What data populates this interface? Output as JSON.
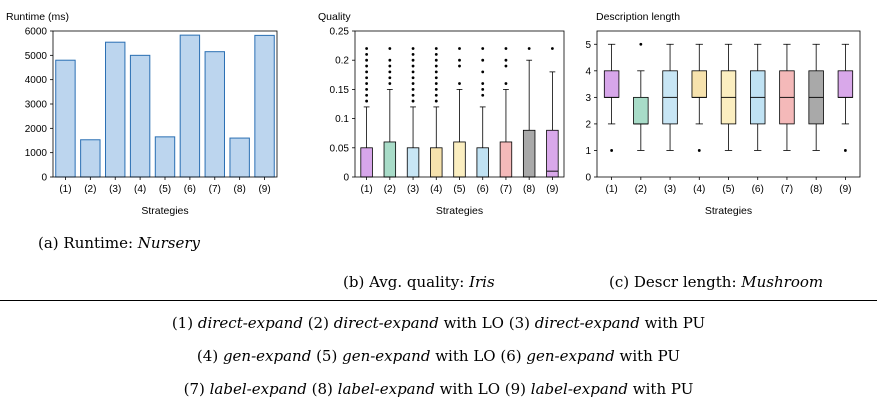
{
  "chart_data": [
    {
      "type": "bar",
      "ylabel": "Runtime (ms)",
      "xlabel": "Strategies",
      "categories": [
        "(1)",
        "(2)",
        "(3)",
        "(4)",
        "(5)",
        "(6)",
        "(7)",
        "(8)",
        "(9)"
      ],
      "values": [
        4800,
        1530,
        5540,
        5000,
        1650,
        5830,
        5150,
        1600,
        5820
      ],
      "ylim": [
        0,
        6000
      ],
      "yticks": [
        "0",
        "1000",
        "2000",
        "3000",
        "4000",
        "5000",
        "6000"
      ],
      "yticks_values": [
        0,
        1000,
        2000,
        3000,
        4000,
        5000,
        6000
      ],
      "bar_color": "#bcd5ee",
      "bar_edge": "#2a6fb3"
    },
    {
      "type": "box",
      "ylabel": "Quality",
      "xlabel": "Strategies",
      "categories": [
        "(1)",
        "(2)",
        "(3)",
        "(4)",
        "(5)",
        "(6)",
        "(7)",
        "(8)",
        "(9)"
      ],
      "ylim": [
        0,
        0.25
      ],
      "yticks": [
        "0",
        "0.05",
        "0.1",
        "0.15",
        "0.2",
        "0.25"
      ],
      "yticks_values": [
        0,
        0.05,
        0.1,
        0.15,
        0.2,
        0.25
      ],
      "boxes": [
        {
          "whislo": 0,
          "q1": 0,
          "med": 0,
          "q3": 0.05,
          "whishi": 0.12,
          "fliers": [
            0.13,
            0.14,
            0.15,
            0.16,
            0.17,
            0.18,
            0.19,
            0.2,
            0.21,
            0.22
          ],
          "color": "#d7a6ea"
        },
        {
          "whislo": 0,
          "q1": 0,
          "med": 0,
          "q3": 0.06,
          "whishi": 0.15,
          "fliers": [
            0.16,
            0.17,
            0.18,
            0.19,
            0.2,
            0.22
          ],
          "color": "#a8dcc8"
        },
        {
          "whislo": 0,
          "q1": 0,
          "med": 0,
          "q3": 0.05,
          "whishi": 0.12,
          "fliers": [
            0.13,
            0.14,
            0.15,
            0.16,
            0.17,
            0.18,
            0.19,
            0.2,
            0.21,
            0.22
          ],
          "color": "#c8e6f5"
        },
        {
          "whislo": 0,
          "q1": 0,
          "med": 0,
          "q3": 0.05,
          "whishi": 0.12,
          "fliers": [
            0.13,
            0.14,
            0.15,
            0.16,
            0.17,
            0.18,
            0.19,
            0.2,
            0.21,
            0.22
          ],
          "color": "#f6e2ad"
        },
        {
          "whislo": 0,
          "q1": 0,
          "med": 0,
          "q3": 0.06,
          "whishi": 0.15,
          "fliers": [
            0.16,
            0.19,
            0.2,
            0.22
          ],
          "color": "#fbeec0"
        },
        {
          "whislo": 0,
          "q1": 0,
          "med": 0,
          "q3": 0.05,
          "whishi": 0.12,
          "fliers": [
            0.14,
            0.15,
            0.16,
            0.18,
            0.2,
            0.22
          ],
          "color": "#c0e2f3"
        },
        {
          "whislo": 0,
          "q1": 0,
          "med": 0,
          "q3": 0.06,
          "whishi": 0.15,
          "fliers": [
            0.16,
            0.19,
            0.2,
            0.22
          ],
          "color": "#f4b9b9"
        },
        {
          "whislo": 0,
          "q1": 0,
          "med": 0,
          "q3": 0.08,
          "whishi": 0.2,
          "fliers": [
            0.22
          ],
          "color": "#a9a9a9"
        },
        {
          "whislo": 0,
          "q1": 0,
          "med": 0.01,
          "q3": 0.08,
          "whishi": 0.18,
          "fliers": [
            0.22
          ],
          "color": "#d9a8ea"
        }
      ]
    },
    {
      "type": "box",
      "ylabel": "Description length",
      "xlabel": "Strategies",
      "categories": [
        "(1)",
        "(2)",
        "(3)",
        "(4)",
        "(5)",
        "(6)",
        "(7)",
        "(8)",
        "(9)"
      ],
      "ylim": [
        0,
        5.5
      ],
      "yticks": [
        "0",
        "1",
        "2",
        "3",
        "4",
        "5"
      ],
      "yticks_values": [
        0,
        1,
        2,
        3,
        4,
        5
      ],
      "boxes": [
        {
          "whislo": 2,
          "q1": 3,
          "med": 3,
          "q3": 4,
          "whishi": 5,
          "fliers": [
            1
          ],
          "color": "#d7a6ea"
        },
        {
          "whislo": 1,
          "q1": 2,
          "med": 2,
          "q3": 3,
          "whishi": 4,
          "fliers": [
            5
          ],
          "color": "#a8dcc8"
        },
        {
          "whislo": 1,
          "q1": 2,
          "med": 3,
          "q3": 4,
          "whishi": 5,
          "fliers": [],
          "color": "#c8e6f5"
        },
        {
          "whislo": 2,
          "q1": 3,
          "med": 3,
          "q3": 4,
          "whishi": 5,
          "fliers": [
            1
          ],
          "color": "#f6e2ad"
        },
        {
          "whislo": 1,
          "q1": 2,
          "med": 3,
          "q3": 4,
          "whishi": 5,
          "fliers": [],
          "color": "#fbeec0"
        },
        {
          "whislo": 1,
          "q1": 2,
          "med": 3,
          "q3": 4,
          "whishi": 5,
          "fliers": [],
          "color": "#c0e2f3"
        },
        {
          "whislo": 1,
          "q1": 2,
          "med": 3,
          "q3": 4,
          "whishi": 5,
          "fliers": [],
          "color": "#f4b9b9"
        },
        {
          "whislo": 1,
          "q1": 2,
          "med": 3,
          "q3": 4,
          "whishi": 5,
          "fliers": [],
          "color": "#a9a9a9"
        },
        {
          "whislo": 2,
          "q1": 3,
          "med": 3,
          "q3": 4,
          "whishi": 5,
          "fliers": [
            1
          ],
          "color": "#d9a8ea"
        }
      ]
    }
  ],
  "captions": {
    "a": {
      "label": "(a) Runtime:",
      "dataset": "Nursery"
    },
    "b": {
      "label": "(b) Avg. quality:",
      "dataset": "Iris"
    },
    "c": {
      "label": "(c) Descr length:",
      "dataset": "Mushroom"
    }
  },
  "legend_lines": [
    [
      {
        "t": "(1) ",
        "i": false
      },
      {
        "t": "direct-expand",
        "i": true
      },
      {
        "t": " (2) ",
        "i": false
      },
      {
        "t": "direct-expand",
        "i": true
      },
      {
        "t": " with LO (3) ",
        "i": false
      },
      {
        "t": "direct-expand",
        "i": true
      },
      {
        "t": " with PU",
        "i": false
      }
    ],
    [
      {
        "t": "(4) ",
        "i": false
      },
      {
        "t": "gen-expand",
        "i": true
      },
      {
        "t": " (5) ",
        "i": false
      },
      {
        "t": "gen-expand",
        "i": true
      },
      {
        "t": " with LO (6) ",
        "i": false
      },
      {
        "t": "gen-expand",
        "i": true
      },
      {
        "t": " with PU",
        "i": false
      }
    ],
    [
      {
        "t": "(7) ",
        "i": false
      },
      {
        "t": "label-expand",
        "i": true
      },
      {
        "t": " (8) ",
        "i": false
      },
      {
        "t": "label-expand",
        "i": true
      },
      {
        "t": " with LO (9) ",
        "i": false
      },
      {
        "t": "label-expand",
        "i": true
      },
      {
        "t": " with PU",
        "i": false
      }
    ]
  ]
}
